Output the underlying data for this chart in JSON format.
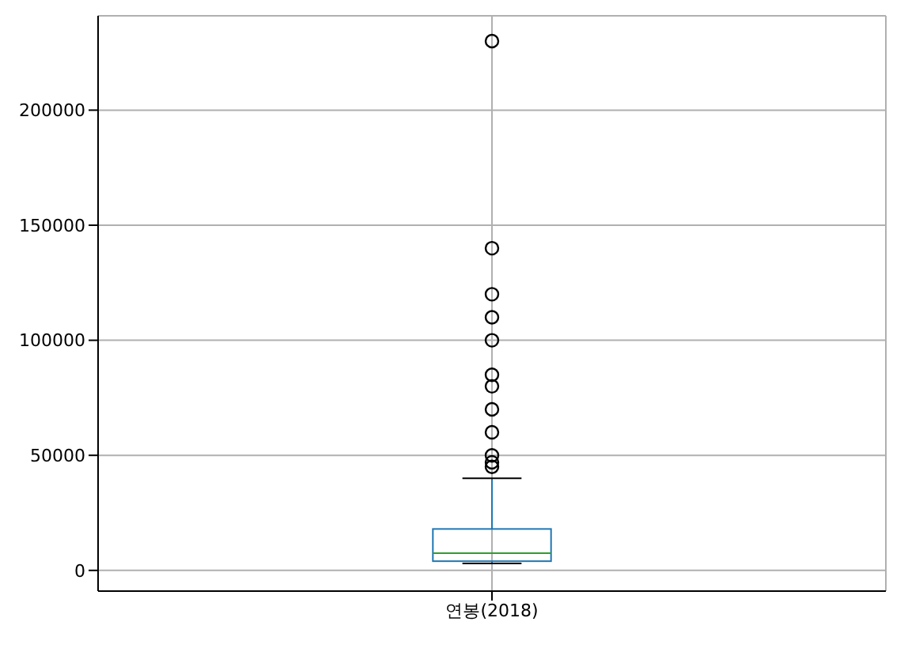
{
  "chart_data": {
    "type": "box",
    "categories": [
      "연봉(2018)"
    ],
    "boxes": [
      {
        "low": 3000,
        "q1": 4000,
        "median": 7500,
        "q3": 18000,
        "high": 40000,
        "outliers": [
          45000,
          47000,
          50000,
          60000,
          70000,
          80000,
          85000,
          100000,
          110000,
          120000,
          140000,
          230000
        ]
      }
    ],
    "color": "#1f77b4",
    "ylim": [
      -9000,
      241000
    ],
    "yticks": [
      0,
      50000,
      100000,
      150000,
      200000
    ],
    "grid": true,
    "marker": "circle"
  }
}
